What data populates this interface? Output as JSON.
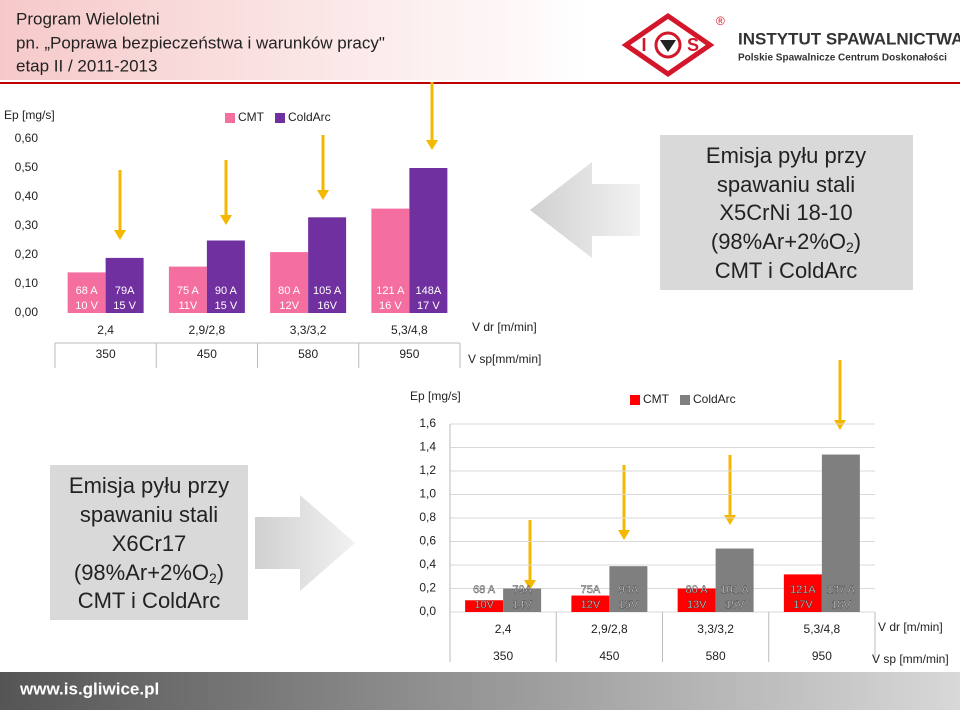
{
  "header": {
    "lines": [
      "Program Wieloletni",
      "pn. „Poprawa bezpieczeństwa i warunków pracy\"",
      "etap II  / 2011-2013"
    ]
  },
  "logo": {
    "letter_left": "I",
    "letter_right": "S",
    "registered": "®",
    "name": "INSTYTUT SPAWALNICTWA",
    "subtitle": "Polskie Spawalnicze Centrum Doskonałości"
  },
  "chart_data": [
    {
      "type": "bar",
      "y_label": "Ep [mg/s]",
      "x_label": "V dr [m/min]",
      "x2_label": "V sp[mm/min]",
      "categories": [
        "2,4",
        "2,9/2,8",
        "3,3/3,2",
        "5,3/4,8"
      ],
      "categories2": [
        "350",
        "450",
        "580",
        "950"
      ],
      "series": [
        {
          "name": "CMT",
          "color": "#f46fa0",
          "values": [
            0.14,
            0.16,
            0.21,
            0.36
          ],
          "notes": [
            [
              "68 A",
              "10 V"
            ],
            [
              "75 A",
              "11V"
            ],
            [
              "80 A",
              "12V"
            ],
            [
              "121 A",
              "16 V"
            ]
          ]
        },
        {
          "name": "ColdArc",
          "color": "#7030a0",
          "values": [
            0.19,
            0.25,
            0.33,
            0.5
          ],
          "notes": [
            [
              "79A",
              "15 V"
            ],
            [
              "90 A",
              "15 V"
            ],
            [
              "105 A",
              "16V"
            ],
            [
              "148A",
              "17 V"
            ]
          ]
        }
      ],
      "ylim": [
        0,
        0.6
      ],
      "yticks": [
        {
          "value": 0,
          "label": "0,00"
        },
        {
          "value": 0.1,
          "label": "0,10"
        },
        {
          "value": 0.2,
          "label": "0,20"
        },
        {
          "value": 0.3,
          "label": "0,30"
        },
        {
          "value": 0.4,
          "label": "0,40"
        },
        {
          "value": 0.5,
          "label": "0,50"
        },
        {
          "value": 0.6,
          "label": "0,60"
        }
      ],
      "grid": false
    },
    {
      "type": "bar",
      "y_label": "Ep [mg/s]",
      "x_label": "V dr [m/min]",
      "x2_label": "V sp [mm/min]",
      "categories": [
        "2,4",
        "2,9/2,8",
        "3,3/3,2",
        "5,3/4,8"
      ],
      "categories2": [
        "350",
        "450",
        "580",
        "950"
      ],
      "series": [
        {
          "name": "CMT",
          "color": "#ff0000",
          "values": [
            0.1,
            0.14,
            0.2,
            0.32
          ],
          "notes": [
            [
              "68 A",
              "10V"
            ],
            [
              "75A",
              "12V"
            ],
            [
              "80 A",
              "13V"
            ],
            [
              "121A",
              "17V"
            ]
          ]
        },
        {
          "name": "ColdArc",
          "color": "#7f7f7f",
          "values": [
            0.2,
            0.39,
            0.54,
            1.34
          ],
          "notes": [
            [
              "79A",
              "14V"
            ],
            [
              "93A",
              "15V"
            ],
            [
              "101 A",
              "15V"
            ],
            [
              "137 A",
              "18V"
            ]
          ]
        }
      ],
      "ylim": [
        0,
        1.6
      ],
      "yticks": [
        {
          "value": 0,
          "label": "0,0"
        },
        {
          "value": 0.2,
          "label": "0,2"
        },
        {
          "value": 0.4,
          "label": "0,4"
        },
        {
          "value": 0.6,
          "label": "0,6"
        },
        {
          "value": 0.8,
          "label": "0,8"
        },
        {
          "value": 1.0,
          "label": "1,0"
        },
        {
          "value": 1.2,
          "label": "1,2"
        },
        {
          "value": 1.4,
          "label": "1,4"
        },
        {
          "value": 1.6,
          "label": "1,6"
        }
      ],
      "grid": true
    }
  ],
  "captions": [
    {
      "lines": [
        "Emisja pyłu przy",
        "spawaniu stali",
        "X5CrNi 18-10"
      ],
      "gas": [
        "(98%Ar+2%O",
        "2",
        ")"
      ],
      "last": "CMT i ColdArc"
    },
    {
      "lines": [
        "Emisja pyłu przy",
        "spawaniu stali",
        "X6Cr17"
      ],
      "gas": [
        "(98%Ar+2%O",
        "2",
        ")"
      ],
      "last": "CMT i ColdArc"
    }
  ],
  "footer": {
    "url": "www.is.gliwice.pl"
  }
}
